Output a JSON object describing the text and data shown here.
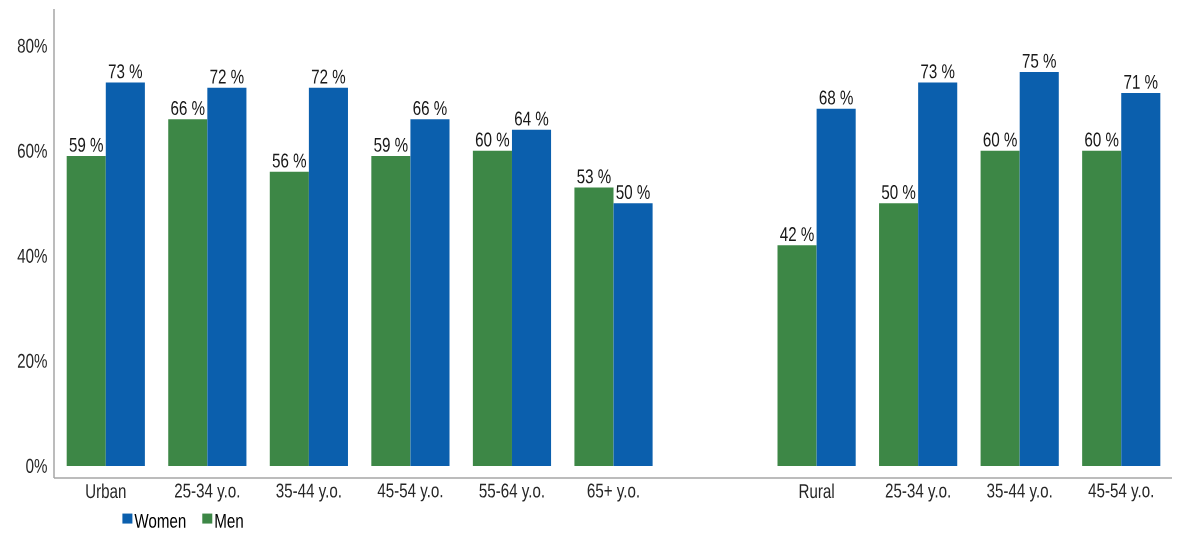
{
  "chart_data": {
    "type": "bar",
    "categories": [
      "Urban",
      "25-34 y.o.",
      "35-44 y.o.",
      "45-54 y.o.",
      "55-64 y.o.",
      "65+ y.o.",
      null,
      "Rural",
      "25-34 y.o.",
      "35-44 y.o.",
      "45-54 y.o."
    ],
    "series": [
      {
        "name": "Men",
        "color": "#3d8746",
        "values": [
          59,
          66,
          56,
          59,
          60,
          53,
          null,
          42,
          50,
          60,
          60
        ],
        "value_labels": [
          "59 %",
          "66 %",
          "56 %",
          "59 %",
          "60 %",
          "53 %",
          null,
          "42 %",
          "50 %",
          "60 %",
          "60 %"
        ]
      },
      {
        "name": "Women",
        "color": "#0b5fad",
        "values": [
          73,
          72,
          72,
          66,
          64,
          50,
          null,
          68,
          73,
          75,
          71
        ],
        "value_labels": [
          "73 %",
          "72 %",
          "72 %",
          "66 %",
          "64 %",
          "50 %",
          null,
          "68 %",
          "73 %",
          "75 %",
          "71 %"
        ]
      }
    ],
    "ylim": [
      -2.3,
      87
    ],
    "yticks": [
      {
        "value": 0,
        "label": "0%"
      },
      {
        "value": 20,
        "label": "20%"
      },
      {
        "value": 40,
        "label": "40%"
      },
      {
        "value": 60,
        "label": "60%"
      },
      {
        "value": 80,
        "label": "80%"
      }
    ],
    "legend": "bottom"
  }
}
